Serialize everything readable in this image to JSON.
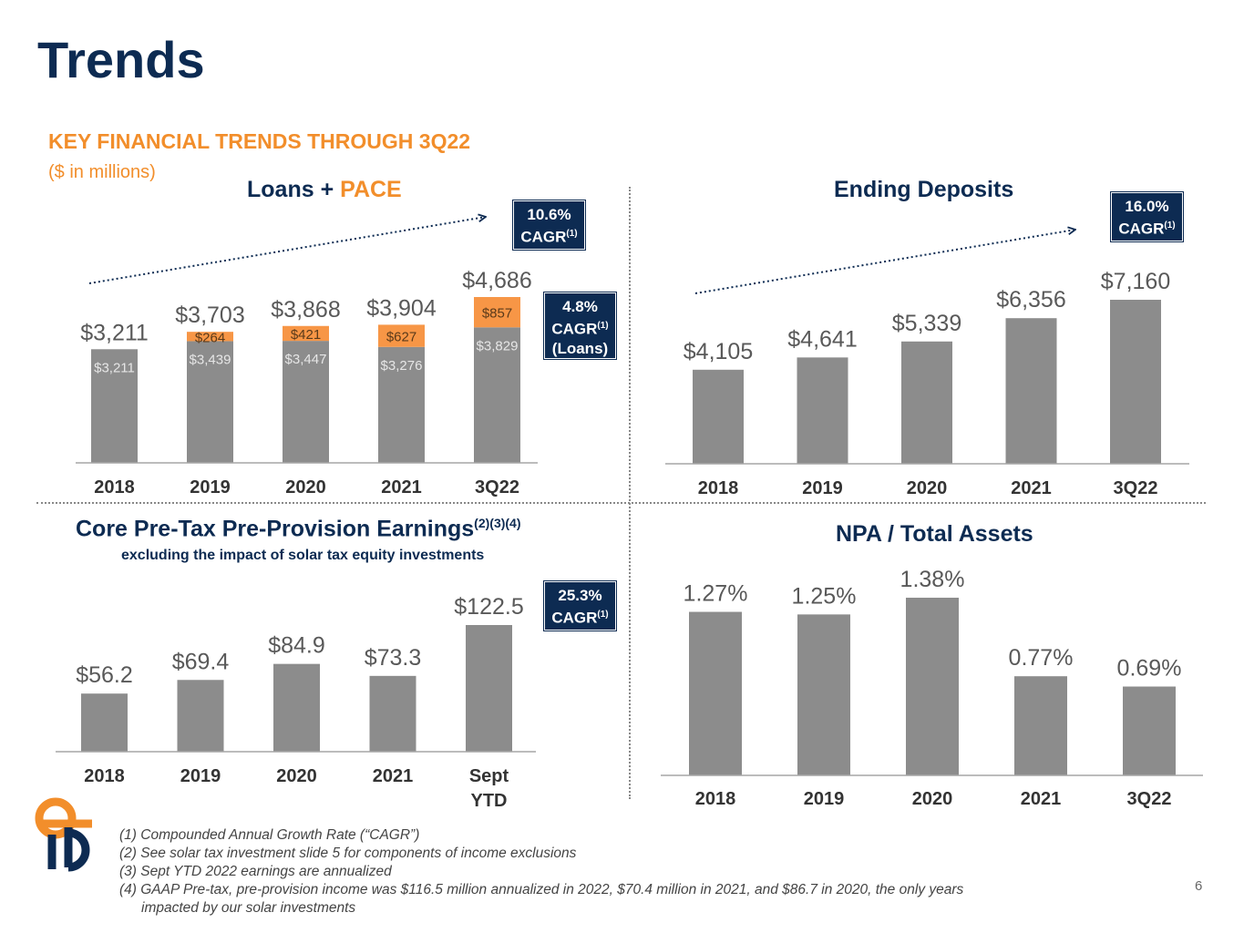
{
  "header": {
    "title": "Trends",
    "subtitle": "KEY FINANCIAL TRENDS THROUGH 3Q22",
    "units": "($ in millions)"
  },
  "cagr_badges": {
    "loans_total": {
      "pct": "10.6%",
      "label": "CAGR",
      "ref": "(1)"
    },
    "loans_only": {
      "pct": "4.8%",
      "label": "CAGR",
      "ref": "(1)",
      "extra": "(Loans)"
    },
    "deposits": {
      "pct": "16.0%",
      "label": "CAGR",
      "ref": "(1)"
    },
    "earnings": {
      "pct": "25.3%",
      "label": "CAGR",
      "ref": "(1)"
    }
  },
  "chart_data": [
    {
      "id": "loans",
      "type": "bar",
      "title_main": "Loans + ",
      "title_accent": "PACE",
      "categories": [
        "2018",
        "2019",
        "2020",
        "2021",
        "3Q22"
      ],
      "series": [
        {
          "name": "Loans",
          "values": [
            3211,
            3439,
            3447,
            3276,
            3829
          ],
          "labels": [
            "$3,211",
            "$3,439",
            "$3,447",
            "$3,276",
            "$3,829"
          ]
        },
        {
          "name": "PACE",
          "values": [
            0,
            264,
            421,
            627,
            857
          ],
          "labels": [
            "",
            "$264",
            "$421",
            "$627",
            "$857"
          ]
        }
      ],
      "totals": [
        3211,
        3703,
        3868,
        3904,
        4686
      ],
      "total_labels": [
        "$3,211",
        "$3,703",
        "$3,868",
        "$3,904",
        "$4,686"
      ],
      "ylim": [
        0,
        4686
      ],
      "colors": {
        "loans": "#8c8c8c",
        "pace": "#f79646"
      }
    },
    {
      "id": "deposits",
      "type": "bar",
      "title": "Ending Deposits",
      "categories": [
        "2018",
        "2019",
        "2020",
        "2021",
        "3Q22"
      ],
      "values": [
        4105,
        4641,
        5339,
        6356,
        7160
      ],
      "labels": [
        "$4,105",
        "$4,641",
        "$5,339",
        "$6,356",
        "$7,160"
      ],
      "ylim": [
        0,
        7160
      ],
      "color": "#8c8c8c"
    },
    {
      "id": "earnings",
      "type": "bar",
      "title": "Core Pre-Tax Pre-Provision Earnings",
      "title_sup": "(2)(3)(4)",
      "subtitle": "excluding the impact of solar tax equity investments",
      "categories": [
        "2018",
        "2019",
        "2020",
        "2021",
        "Sept YTD"
      ],
      "values": [
        56.2,
        69.4,
        84.9,
        73.3,
        122.5
      ],
      "labels": [
        "$56.2",
        "$69.4",
        "$84.9",
        "$73.3",
        "$122.5"
      ],
      "ylim": [
        0,
        122.5
      ],
      "color": "#8c8c8c"
    },
    {
      "id": "npa",
      "type": "bar",
      "title": "NPA / Total Assets",
      "categories": [
        "2018",
        "2019",
        "2020",
        "2021",
        "3Q22"
      ],
      "values": [
        1.27,
        1.25,
        1.38,
        0.77,
        0.69
      ],
      "labels": [
        "1.27%",
        "1.25%",
        "1.38%",
        "0.77%",
        "0.69%"
      ],
      "ylim": [
        0,
        1.38
      ],
      "color": "#8c8c8c"
    }
  ],
  "footnotes": [
    "(1) Compounded Annual Growth Rate (“CAGR”)",
    "(2) See solar tax investment slide 5 for components of income exclusions",
    "(3) Sept YTD 2022 earnings are annualized",
    "(4) GAAP Pre-tax, pre-provision income was $116.5 million annualized in 2022, $70.4 million in 2021, and $86.7 in 2020, the only years",
    "impacted by our solar investments"
  ],
  "page_number": "6",
  "logo": {
    "icon": "company-logo-icon",
    "colors": [
      "#f28e2b",
      "#0d2b52"
    ]
  }
}
